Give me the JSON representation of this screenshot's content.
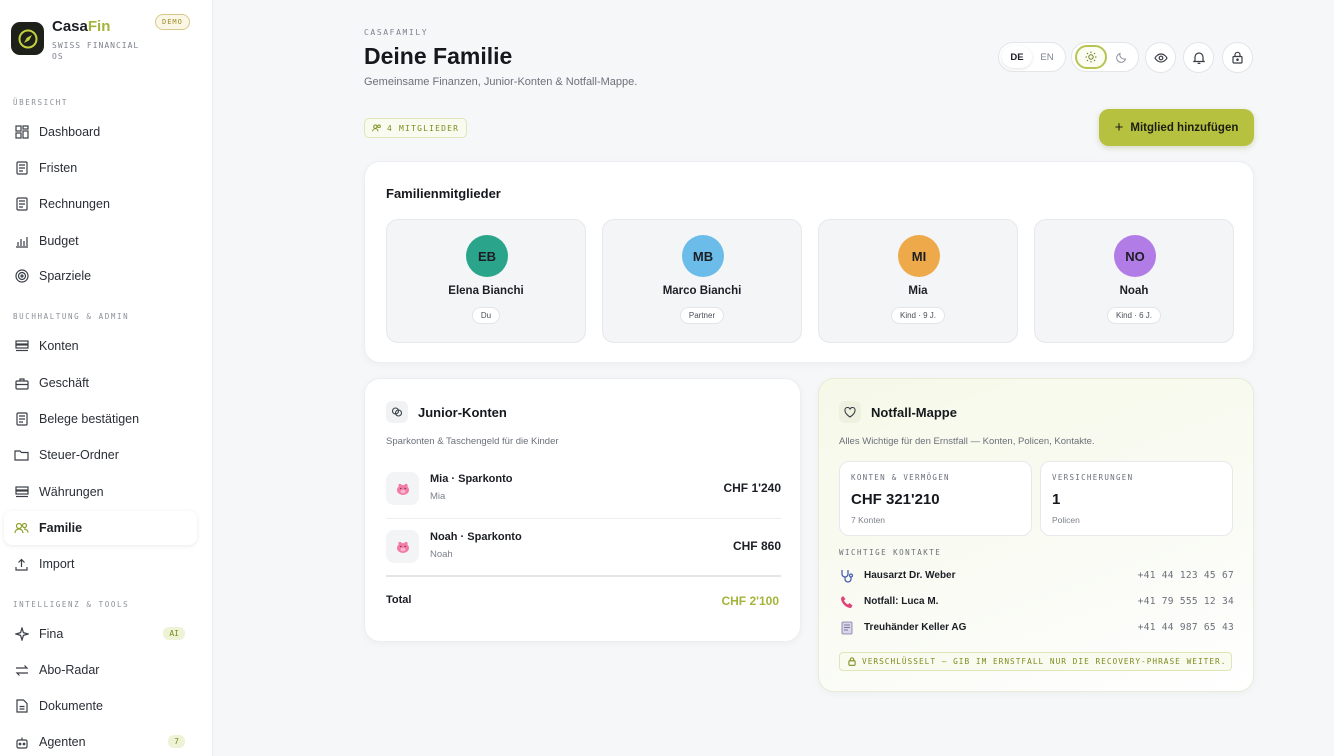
{
  "brand": {
    "name_part1": "Casa",
    "name_part2": "Fin",
    "subtitle": "SWISS FINANCIAL OS",
    "badge": "DEMO"
  },
  "sidebar": {
    "sections": [
      {
        "label": "ÜBERSICHT"
      },
      {
        "label": "BUCHHALTUNG & ADMIN"
      },
      {
        "label": "INTELLIGENZ & TOOLS"
      }
    ],
    "items": [
      {
        "label": "Dashboard",
        "icon": "grid-icon"
      },
      {
        "label": "Fristen",
        "icon": "document-icon"
      },
      {
        "label": "Rechnungen",
        "icon": "receipt-icon"
      },
      {
        "label": "Budget",
        "icon": "chart-icon"
      },
      {
        "label": "Sparziele",
        "icon": "target-icon"
      },
      {
        "label": "Konten",
        "icon": "accounts-icon"
      },
      {
        "label": "Geschäft",
        "icon": "briefcase-icon"
      },
      {
        "label": "Belege bestätigen",
        "icon": "receipt-check-icon"
      },
      {
        "label": "Steuer-Ordner",
        "icon": "folder-icon"
      },
      {
        "label": "Währungen",
        "icon": "currency-icon"
      },
      {
        "label": "Familie",
        "icon": "users-icon",
        "active": true
      },
      {
        "label": "Import",
        "icon": "upload-icon"
      },
      {
        "label": "Fina",
        "icon": "sparkle-icon",
        "badge": "AI"
      },
      {
        "label": "Abo-Radar",
        "icon": "repeat-icon"
      },
      {
        "label": "Dokumente",
        "icon": "file-icon"
      },
      {
        "label": "Agenten",
        "icon": "robot-icon",
        "badge": "7"
      }
    ]
  },
  "header": {
    "eyebrow": "CASAFAMILY",
    "title": "Deine Familie",
    "subtitle": "Gemeinsame Finanzen, Junior-Konten & Notfall-Mappe.",
    "lang_de": "DE",
    "lang_en": "EN"
  },
  "members_chip": "4 MITGLIEDER",
  "add_member_label": "Mitglied hinzufügen",
  "family": {
    "title": "Familienmitglieder",
    "members": [
      {
        "initials": "EB",
        "name": "Elena Bianchi",
        "role": "Du",
        "color": "#2aa58c"
      },
      {
        "initials": "MB",
        "name": "Marco Bianchi",
        "role": "Partner",
        "color": "#6bbce8"
      },
      {
        "initials": "MI",
        "name": "Mia",
        "role": "Kind · 9 J.",
        "color": "#eea94a"
      },
      {
        "initials": "NO",
        "name": "Noah",
        "role": "Kind · 6 J.",
        "color": "#b27ce6"
      }
    ]
  },
  "junior": {
    "title": "Junior-Konten",
    "subtitle": "Sparkonten & Taschengeld für die Kinder",
    "accounts": [
      {
        "name": "Mia · Sparkonto",
        "owner": "Mia",
        "value": "CHF 1'240"
      },
      {
        "name": "Noah · Sparkonto",
        "owner": "Noah",
        "value": "CHF 860"
      }
    ],
    "total_label": "Total",
    "total_value": "CHF 2'100"
  },
  "notfall": {
    "title": "Notfall-Mappe",
    "subtitle": "Alles Wichtige für den Ernstfall — Konten, Policen, Kontakte.",
    "stats": [
      {
        "label": "KONTEN & VERMÖGEN",
        "value": "CHF 321'210",
        "sub": "7 Konten"
      },
      {
        "label": "VERSICHERUNGEN",
        "value": "1",
        "sub": "Policen"
      }
    ],
    "contacts_label": "WICHTIGE KONTAKTE",
    "contacts": [
      {
        "name": "Hausarzt Dr. Weber",
        "phone": "+41 44 123 45 67",
        "icon": "stethoscope-icon"
      },
      {
        "name": "Notfall: Luca M.",
        "phone": "+41 79 555 12 34",
        "icon": "phone-icon"
      },
      {
        "name": "Treuhänder Keller AG",
        "phone": "+41 44 987 65 43",
        "icon": "ledger-icon"
      }
    ],
    "secure_note": "VERSCHLÜSSELT — GIB IM ERNSTFALL NUR DIE RECOVERY-PHRASE WEITER."
  },
  "colors": {
    "accent": "#b7c140",
    "accent_text": "#a4b33a"
  }
}
